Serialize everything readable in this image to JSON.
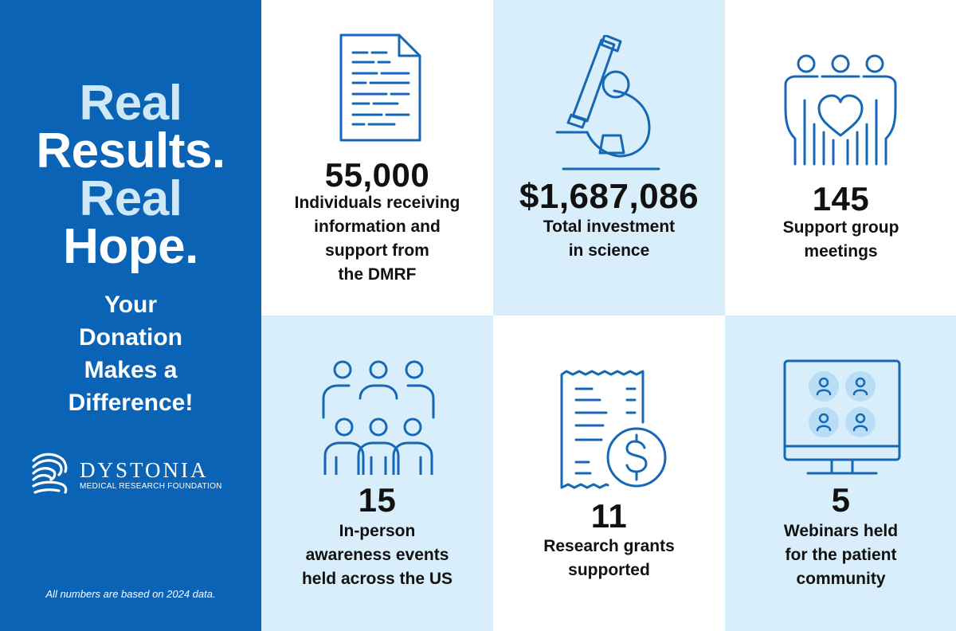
{
  "sidebar": {
    "headline": [
      "Real",
      "Results.",
      "Real",
      "Hope."
    ],
    "subline": [
      "Your",
      "Donation",
      "Makes a",
      "Difference!"
    ],
    "logo_name": "DYSTONIA",
    "logo_sub": "MEDICAL RESEARCH FOUNDATION",
    "footnote": "All numbers are based on 2024 data."
  },
  "stats": [
    {
      "value": "55,000",
      "lines": [
        "Individuals receiving",
        "information and",
        "support from",
        "the DMRF"
      ],
      "icon": "document-icon"
    },
    {
      "value": "$1,687,086",
      "lines": [
        "Total investment",
        "in science"
      ],
      "icon": "microscope-icon"
    },
    {
      "value": "145",
      "lines": [
        "Support group",
        "meetings"
      ],
      "icon": "support-group-heart-icon"
    },
    {
      "value": "15",
      "lines": [
        "In-person",
        "awareness events",
        "held across the US"
      ],
      "icon": "crowd-icon"
    },
    {
      "value": "11",
      "lines": [
        "Research grants",
        "supported"
      ],
      "icon": "receipt-dollar-icon"
    },
    {
      "value": "5",
      "lines": [
        "Webinars held",
        "for the patient",
        "community"
      ],
      "icon": "webinar-monitor-icon"
    }
  ],
  "colors": {
    "primary_blue": "#0b63b5",
    "light_blue": "#d8eefa",
    "icon_blue": "#1667b6",
    "headline_light": "#cfe8f7"
  }
}
